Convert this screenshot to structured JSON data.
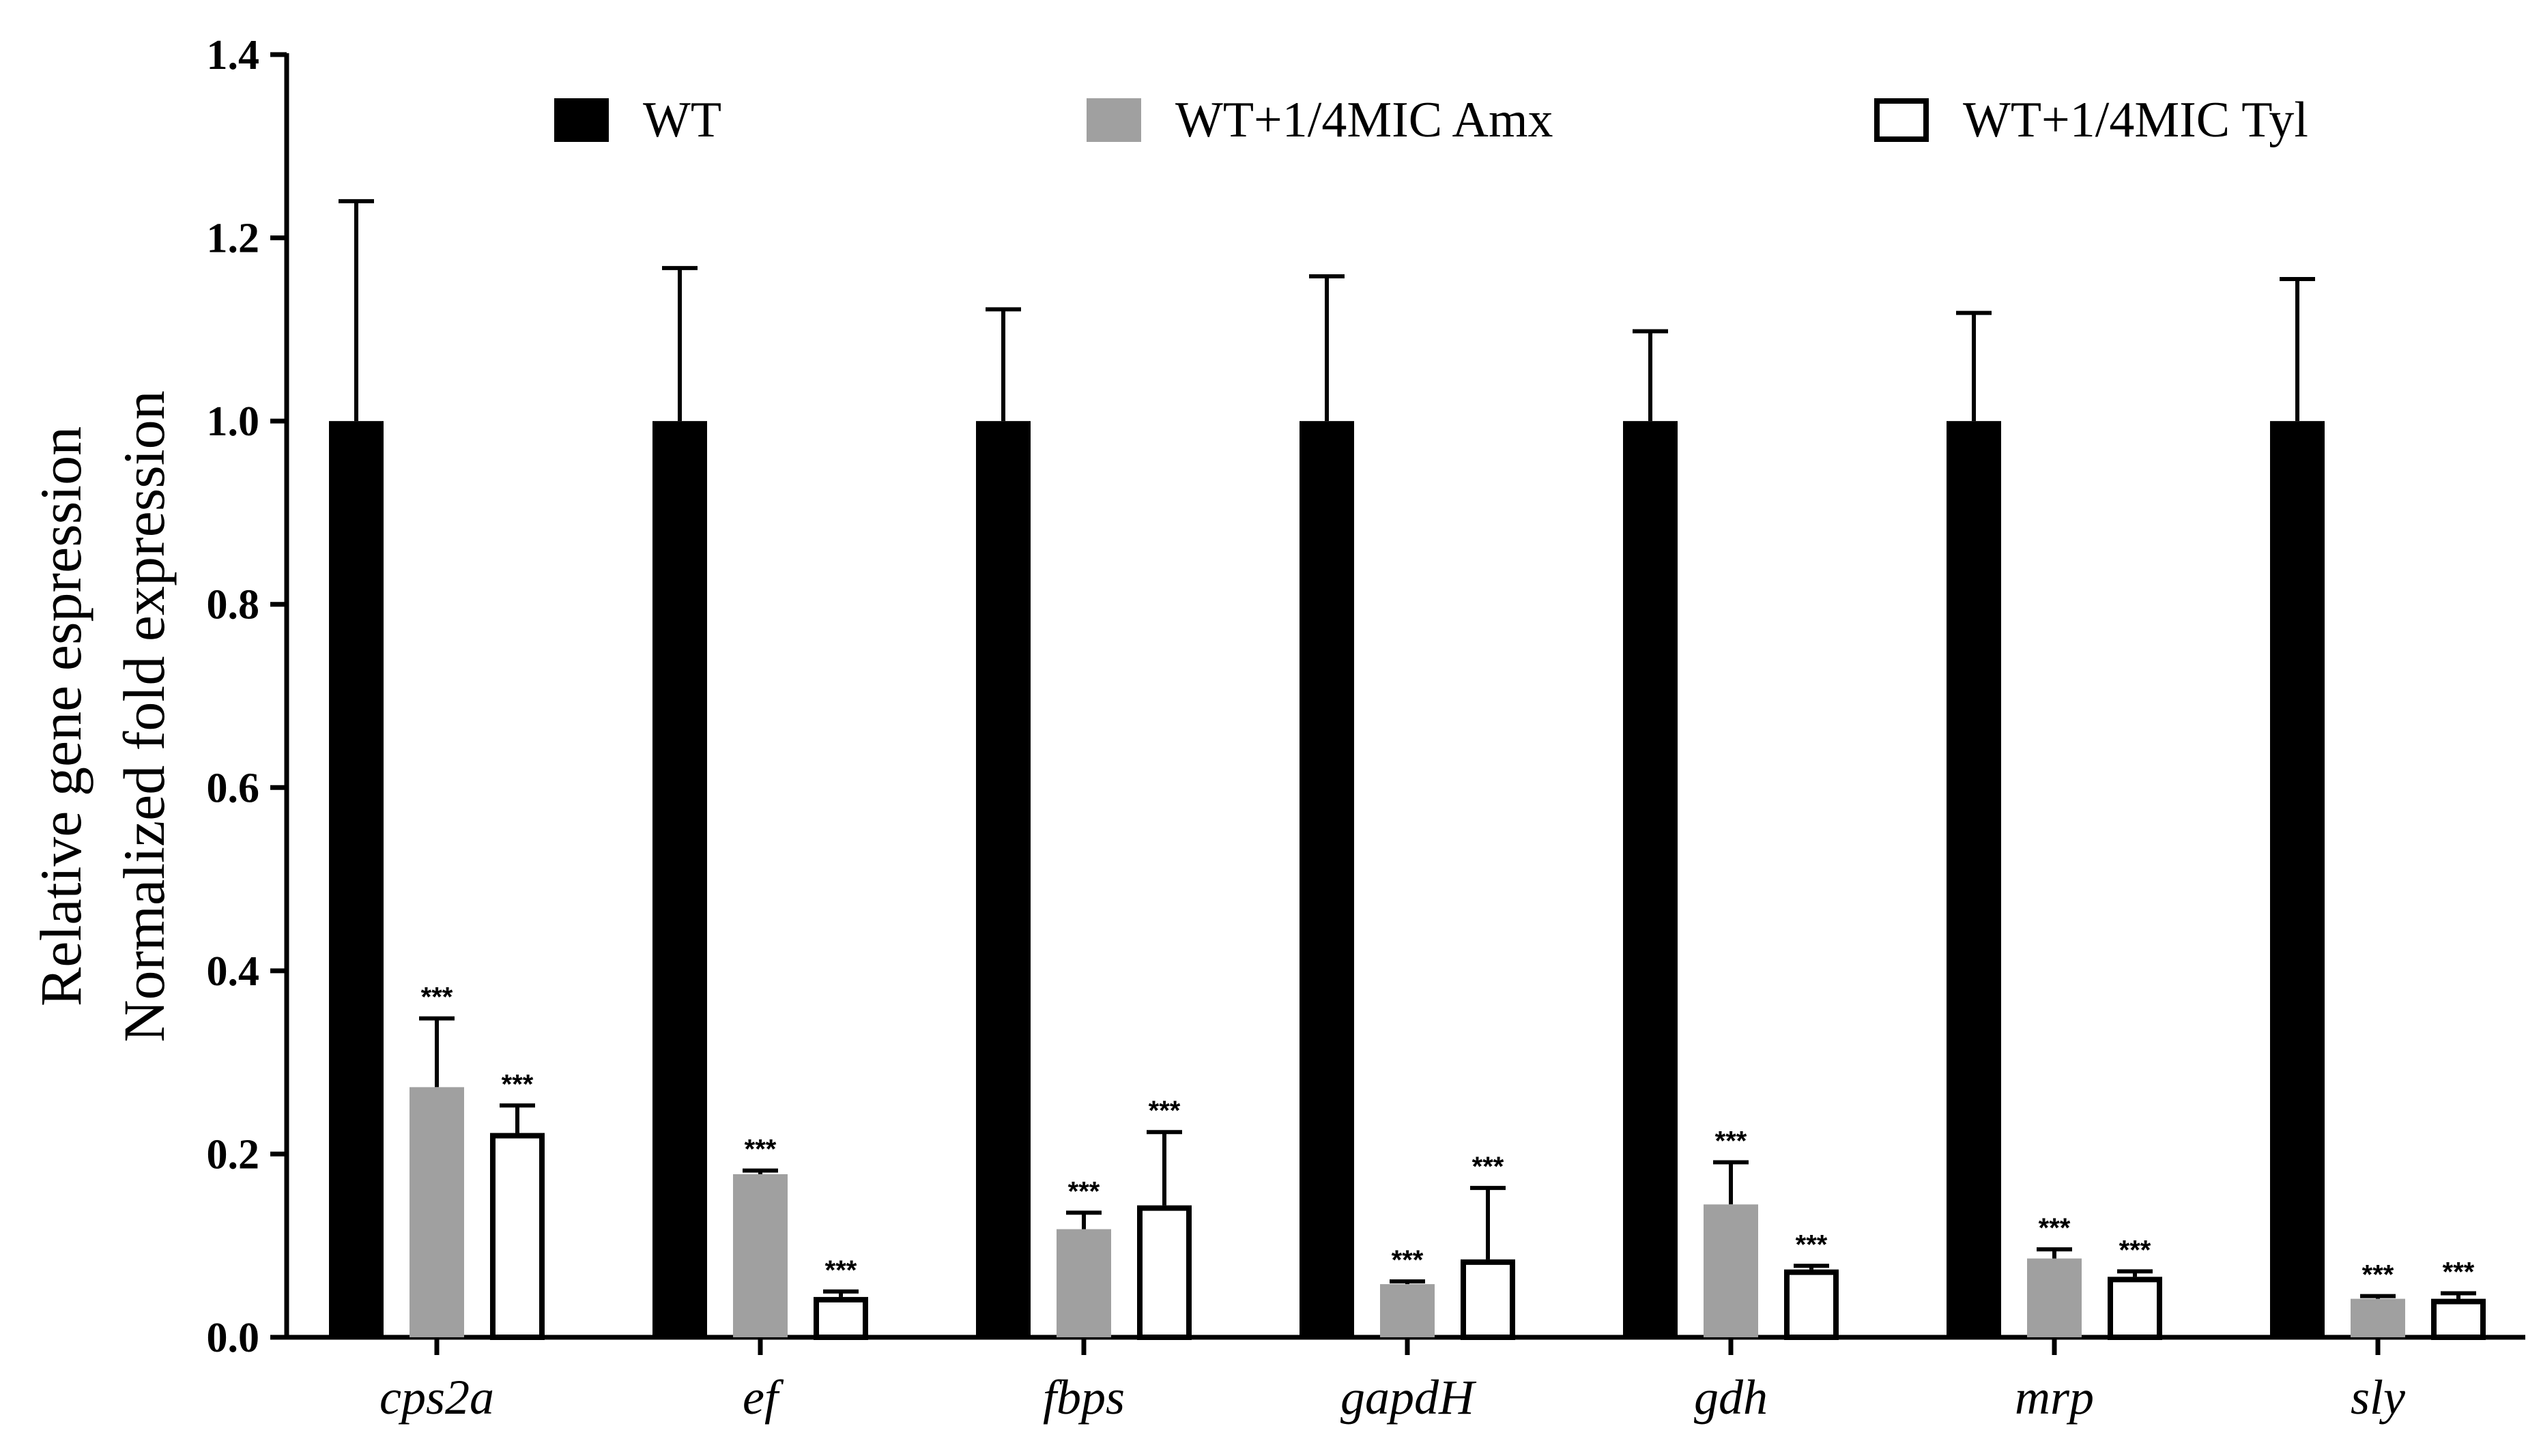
{
  "chart_data": {
    "type": "bar",
    "title": "",
    "ylabel_lines": [
      "Relative gene espression",
      "Normalized fold expression"
    ],
    "xlabel": "",
    "ylim": [
      0,
      1.4
    ],
    "yticks": [
      "0.0",
      "0.2",
      "0.4",
      "0.6",
      "0.8",
      "1.0",
      "1.2",
      "1.4"
    ],
    "categories": [
      "cps2a",
      "ef",
      "fbps",
      "gapdH",
      "gdh",
      "mrp",
      "sly"
    ],
    "series": [
      {
        "name": "WT",
        "fill": "#000000",
        "stroke": "#000000",
        "values": [
          1.0,
          1.0,
          1.0,
          1.0,
          1.0,
          1.0,
          1.0
        ],
        "errors": [
          0.24,
          0.167,
          0.122,
          0.158,
          0.098,
          0.118,
          0.155
        ],
        "sig": [
          "",
          "",
          "",
          "",
          "",
          "",
          ""
        ]
      },
      {
        "name": "WT+1/4MIC Amx",
        "fill": "#a0a0a0",
        "stroke": "#a0a0a0",
        "values": [
          0.273,
          0.178,
          0.118,
          0.058,
          0.145,
          0.086,
          0.042
        ],
        "errors": [
          0.075,
          0.004,
          0.018,
          0.003,
          0.046,
          0.01,
          0.003
        ],
        "sig": [
          "***",
          "***",
          "***",
          "***",
          "***",
          "***",
          "***"
        ]
      },
      {
        "name": "WT+1/4MIC Tyl",
        "fill": "#ffffff",
        "stroke": "#000000",
        "values": [
          0.223,
          0.044,
          0.144,
          0.085,
          0.074,
          0.066,
          0.042
        ],
        "errors": [
          0.03,
          0.006,
          0.08,
          0.078,
          0.004,
          0.006,
          0.006
        ],
        "sig": [
          "***",
          "***",
          "***",
          "***",
          "***",
          "***",
          "***"
        ]
      }
    ],
    "legend": "top, horizontal"
  }
}
